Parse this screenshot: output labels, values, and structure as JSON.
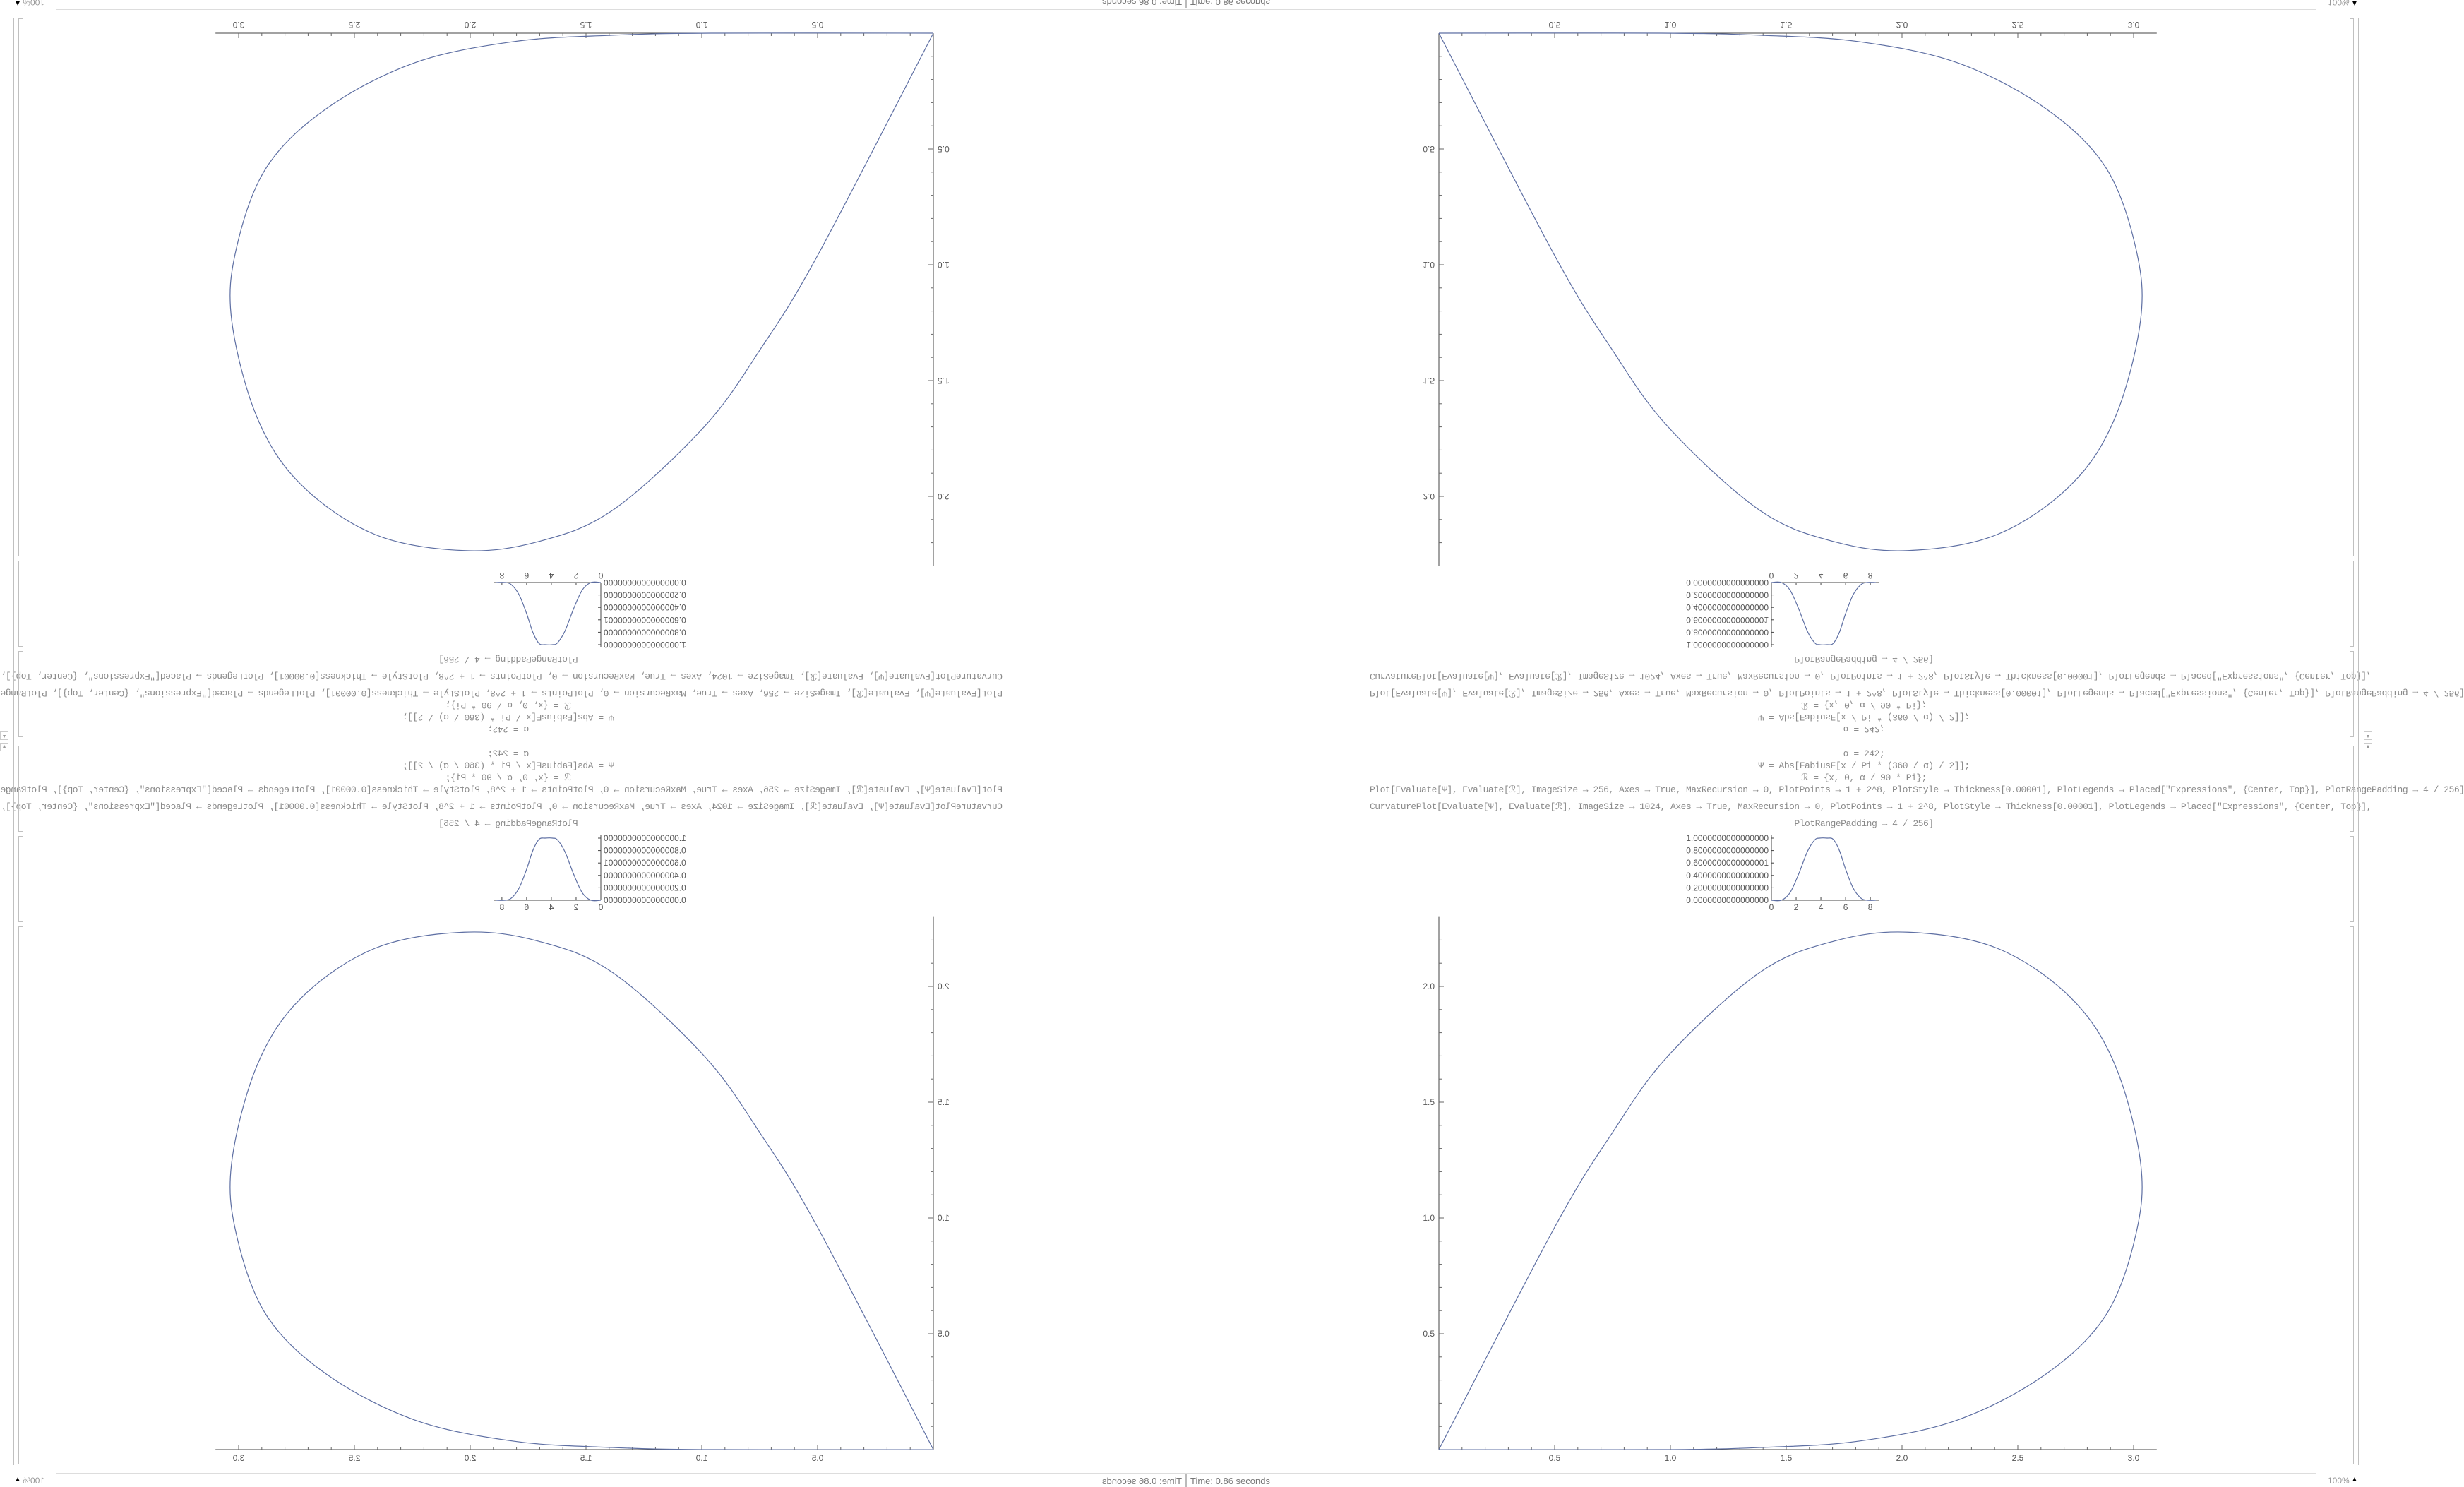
{
  "notebook": {
    "code_lines": [
      "α = 242;",
      "Ψ = Abs[FabiusF[x / Pi * (360 / α) / 2]];",
      "ℛ = {x, 0, α / 90 * Pi};",
      "Plot[Evaluate[Ψ], Evaluate[ℛ], ImageSize → 256, Axes → True, MaxRecursion → 0, PlotPoints → 1 + 2^8, PlotStyle → Thickness[0.00001], PlotLegends → Placed[\"Expressions\", {Center, Top}], PlotRangePadding → 4 / 256]",
      "CurvaturePlot[Evaluate[Ψ], Evaluate[ℛ], ImageSize → 1024, Axes → True, MaxRecursion → 0, PlotPoints → 1 + 2^8, PlotStyle → Thickness[0.00001], PlotLegends → Placed[\"Expressions\", {Center, Top}],",
      "PlotRangePadding → 4 / 256]"
    ],
    "status_time": "Time: 0.86 seconds",
    "zoom_level": "100%",
    "curve_color": "#5e6fa3"
  },
  "chart_data": [
    {
      "type": "line",
      "x_ticks": [
        "0",
        "2",
        "4",
        "6",
        "8"
      ],
      "y_ticks": [
        "0.0000000000000000",
        "0.2000000000000000",
        "0.4000000000000000",
        "0.6000000000000001",
        "0.8000000000000000",
        "1.0000000000000000"
      ],
      "xlim": [
        0,
        8.45
      ],
      "ylim": [
        0,
        1
      ],
      "x": [
        0,
        0.8,
        1.5,
        2.2,
        2.9,
        3.5,
        3.9,
        4.5,
        5.0,
        5.5,
        6.0,
        6.6,
        7.2,
        7.7,
        8.45
      ],
      "y": [
        0,
        0,
        0.12,
        0.42,
        0.78,
        0.97,
        1.0,
        1.0,
        0.98,
        0.8,
        0.5,
        0.2,
        0.04,
        0,
        0
      ]
    },
    {
      "type": "line",
      "x_ticks": [
        "0.5",
        "1.0",
        "1.5",
        "2.0",
        "2.5",
        "3.0"
      ],
      "y_ticks": [
        "0.5",
        "1.0",
        "1.5",
        "2.0"
      ],
      "xlim": [
        0,
        3.1
      ],
      "ylim": [
        0,
        2.25
      ],
      "x": [
        0,
        0.5,
        0.744,
        0.99,
        1.385,
        1.705,
        2.026,
        2.41,
        2.73,
        2.92,
        3.03,
        3.01,
        2.88,
        2.62,
        2.24,
        1.81,
        1.385,
        0.96,
        0
      ],
      "y": [
        0,
        0.96,
        1.36,
        1.7,
        2.06,
        2.195,
        2.234,
        2.165,
        1.95,
        1.66,
        1.24,
        0.93,
        0.58,
        0.325,
        0.128,
        0.036,
        0.009,
        0,
        0
      ]
    }
  ]
}
